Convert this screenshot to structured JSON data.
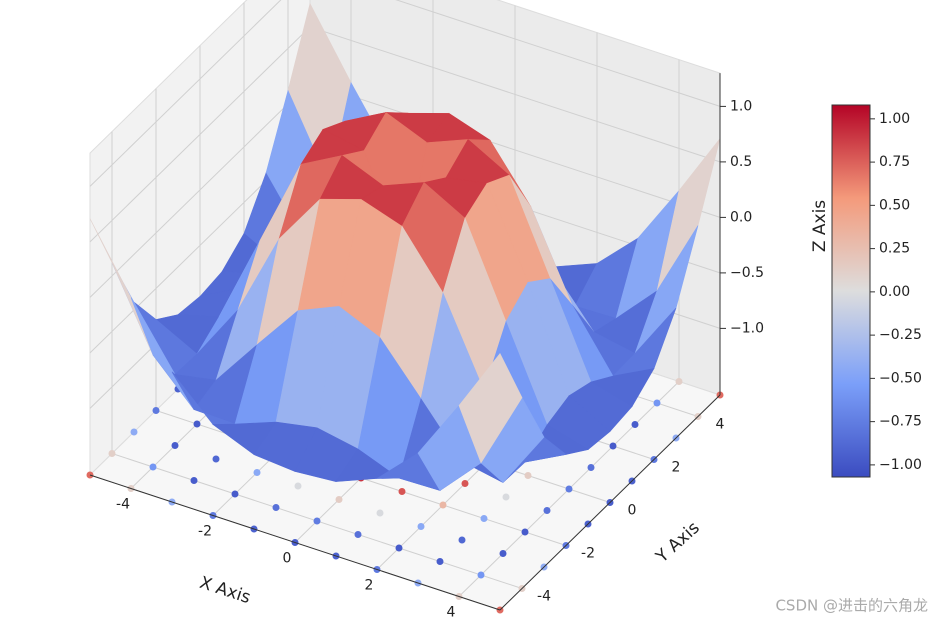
{
  "chart_data": {
    "type": "surface3d",
    "xlabel": "X Axis",
    "ylabel": "Y Axis",
    "zlabel": "Z Axis",
    "x": [
      -5,
      -4,
      -3,
      -2,
      -1,
      0,
      1,
      2,
      3,
      4,
      5
    ],
    "y": [
      -5,
      -4,
      -3,
      -2,
      -1,
      0,
      1,
      2,
      3,
      4,
      5
    ],
    "z": [
      [
        0.71,
        0.12,
        -0.43,
        -0.78,
        -0.93,
        -0.96,
        -0.93,
        -0.78,
        -0.43,
        0.12,
        0.71
      ],
      [
        0.12,
        -0.59,
        -0.96,
        -0.97,
        -0.83,
        -0.76,
        -0.83,
        -0.97,
        -0.96,
        -0.59,
        0.12
      ],
      [
        -0.43,
        -0.96,
        -0.89,
        -0.45,
        -0.02,
        0.14,
        -0.02,
        -0.45,
        -0.89,
        -0.96,
        -0.43
      ],
      [
        -0.78,
        -0.97,
        -0.45,
        0.31,
        0.79,
        0.91,
        0.79,
        0.31,
        -0.45,
        -0.97,
        -0.78
      ],
      [
        -0.93,
        -0.83,
        -0.02,
        0.79,
        0.99,
        0.84,
        0.99,
        0.79,
        -0.02,
        -0.83,
        -0.93
      ],
      [
        -0.96,
        -0.76,
        0.14,
        0.91,
        0.84,
        0,
        0.84,
        0.91,
        0.14,
        -0.76,
        -0.96
      ],
      [
        -0.93,
        -0.83,
        -0.02,
        0.79,
        0.99,
        0.84,
        0.99,
        0.79,
        -0.02,
        -0.83,
        -0.93
      ],
      [
        -0.78,
        -0.97,
        -0.45,
        0.31,
        0.79,
        0.91,
        0.79,
        0.31,
        -0.45,
        -0.97,
        -0.78
      ],
      [
        -0.43,
        -0.96,
        -0.89,
        -0.45,
        -0.02,
        0.14,
        -0.02,
        -0.45,
        -0.89,
        -0.96,
        -0.43
      ],
      [
        0.12,
        -0.59,
        -0.96,
        -0.97,
        -0.83,
        -0.76,
        -0.83,
        -0.97,
        -0.96,
        -0.59,
        0.12
      ],
      [
        0.71,
        0.12,
        -0.43,
        -0.78,
        -0.93,
        -0.96,
        -0.93,
        -0.78,
        -0.43,
        0.12,
        0.71
      ]
    ],
    "xlim": [
      -5,
      5
    ],
    "ylim": [
      -5,
      5
    ],
    "zlim": [
      -1.6,
      1.3
    ],
    "xticks": [
      -4,
      -2,
      0,
      2,
      4
    ],
    "yticks": [
      -4,
      -2,
      0,
      2,
      4
    ],
    "zticks": [
      {
        "value": -1,
        "label": "−1.0"
      },
      {
        "value": -0.5,
        "label": "−0.5"
      },
      {
        "value": 0,
        "label": "0.0"
      },
      {
        "value": 0.5,
        "label": "0.5"
      },
      {
        "value": 1,
        "label": "1.0"
      }
    ],
    "clim": [
      -1.07,
      1.08
    ],
    "cticks": [
      {
        "value": -1,
        "label": "−1.00"
      },
      {
        "value": -0.75,
        "label": "−0.75"
      },
      {
        "value": -0.5,
        "label": "−0.50"
      },
      {
        "value": -0.25,
        "label": "−0.25"
      },
      {
        "value": 0,
        "label": "0.00"
      },
      {
        "value": 0.25,
        "label": "0.25"
      },
      {
        "value": 0.5,
        "label": "0.50"
      },
      {
        "value": 0.75,
        "label": "0.75"
      },
      {
        "value": 1,
        "label": "1.00"
      }
    ],
    "colormap": [
      "#3b4cc0",
      "#7b9ff9",
      "#dddddd",
      "#f49a7b",
      "#b40426"
    ],
    "watermark": "CSDN @进击的六角龙"
  }
}
